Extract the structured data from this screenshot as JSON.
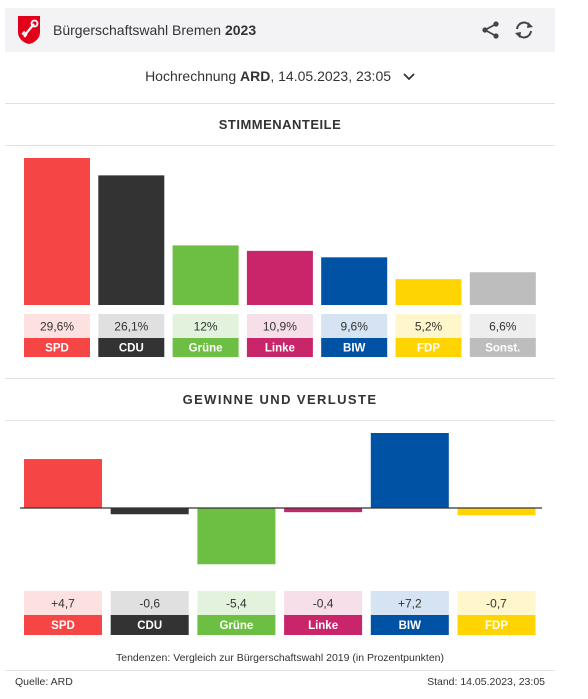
{
  "header": {
    "title_main": "Bürgerschaftswahl Bremen",
    "title_year": "2023",
    "crest_icon": "bremen-key-crest-icon",
    "share_icon": "share-icon",
    "refresh_icon": "refresh-icon"
  },
  "selector": {
    "prefix": "Hochrechnung",
    "source": "ARD",
    "suffix": ", 14.05.2023, 23:05",
    "icon": "chevron-down-icon"
  },
  "chart_data": [
    {
      "type": "bar",
      "title": "STIMMENANTEILE",
      "categories": [
        "SPD",
        "CDU",
        "Grüne",
        "Linke",
        "BIW",
        "FDP",
        "Sonst."
      ],
      "values": [
        29.6,
        26.1,
        12,
        10.9,
        9.6,
        5.2,
        6.6
      ],
      "value_labels": [
        "29,6%",
        "26,1%",
        "12%",
        "10,9%",
        "9,6%",
        "5,2%",
        "6,6%"
      ],
      "colors": [
        "#f64545",
        "#333333",
        "#6cbf42",
        "#c8256a",
        "#0052a5",
        "#ffd400",
        "#bdbdbd"
      ],
      "tint_colors": [
        "#fde0e0",
        "#e0e0e0",
        "#e3f2dc",
        "#f6dfe9",
        "#d5e3f2",
        "#fff6cc",
        "#eeeeee"
      ],
      "ylim": [
        0,
        30
      ]
    },
    {
      "type": "bar",
      "title": "GEWINNE UND VERLUSTE",
      "categories": [
        "SPD",
        "CDU",
        "Grüne",
        "Linke",
        "BIW",
        "FDP"
      ],
      "values": [
        4.7,
        -0.6,
        -5.4,
        -0.4,
        7.2,
        -0.7
      ],
      "value_labels": [
        "+4,7",
        "-0,6",
        "-5,4",
        "-0,4",
        "+7,2",
        "-0,7"
      ],
      "colors": [
        "#f64545",
        "#333333",
        "#6cbf42",
        "#c8256a",
        "#0052a5",
        "#ffd400"
      ],
      "tint_colors": [
        "#fde0e0",
        "#e0e0e0",
        "#e3f2dc",
        "#f6dfe9",
        "#d5e3f2",
        "#fff6cc"
      ],
      "ylim": [
        -7.5,
        7.5
      ]
    }
  ],
  "footnote": "Tendenzen: Vergleich zur Bürgerschaftswahl 2019 (in Prozentpunkten)",
  "footer": {
    "source": "Quelle: ARD",
    "stand": "Stand: 14.05.2023, 23:05"
  }
}
